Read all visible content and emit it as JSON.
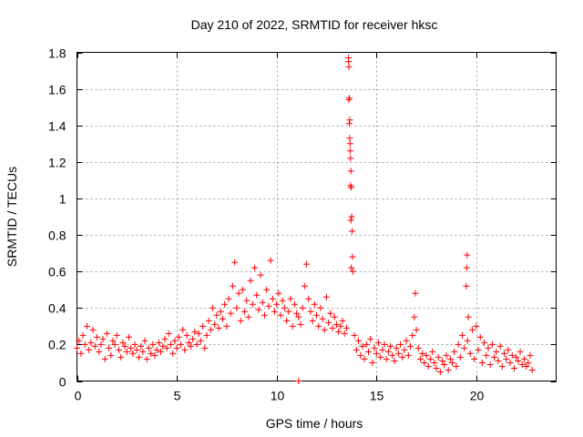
{
  "chart_data": {
    "type": "scatter",
    "title": "Day 210 of 2022, SRMTID for receiver hksc",
    "xlabel": "GPS time / hours",
    "ylabel": "SRMTID / TECUs",
    "xlim": [
      0,
      24
    ],
    "ylim": [
      0,
      1.8
    ],
    "xticks": [
      0,
      5,
      10,
      15,
      20
    ],
    "yticks": [
      0,
      0.2,
      0.4,
      0.6,
      0.8,
      1,
      1.2,
      1.4,
      1.6,
      1.8
    ],
    "xtick_labels": [
      "0",
      "5",
      "10",
      "15",
      "20"
    ],
    "ytick_labels": [
      "0",
      "0.2",
      "0.4",
      "0.6",
      "0.8",
      "1",
      "1.2",
      "1.4",
      "1.6",
      "1.8"
    ],
    "grid": true,
    "marker": "plus",
    "color": "#ff0000",
    "series": [
      {
        "name": "SRMTID",
        "x": [
          0.0,
          0.1,
          0.2,
          0.3,
          0.4,
          0.5,
          0.6,
          0.7,
          0.8,
          0.9,
          1.0,
          1.1,
          1.2,
          1.3,
          1.4,
          1.5,
          1.6,
          1.7,
          1.8,
          1.9,
          2.0,
          2.1,
          2.2,
          2.3,
          2.4,
          2.5,
          2.6,
          2.7,
          2.8,
          2.9,
          3.0,
          3.1,
          3.2,
          3.3,
          3.4,
          3.5,
          3.6,
          3.7,
          3.8,
          3.9,
          4.0,
          4.1,
          4.2,
          4.3,
          4.4,
          4.5,
          4.6,
          4.7,
          4.8,
          4.9,
          5.0,
          5.1,
          5.2,
          5.3,
          5.4,
          5.5,
          5.6,
          5.7,
          5.8,
          5.9,
          6.0,
          6.1,
          6.2,
          6.3,
          6.4,
          6.5,
          6.6,
          6.7,
          6.8,
          6.9,
          7.0,
          7.1,
          7.2,
          7.3,
          7.4,
          7.5,
          7.6,
          7.7,
          7.8,
          7.9,
          8.0,
          8.1,
          8.2,
          8.3,
          8.4,
          8.5,
          8.6,
          8.7,
          8.8,
          8.9,
          9.0,
          9.1,
          9.2,
          9.3,
          9.4,
          9.5,
          9.6,
          9.7,
          9.8,
          9.9,
          10.0,
          10.1,
          10.2,
          10.3,
          10.4,
          10.5,
          10.6,
          10.7,
          10.8,
          10.9,
          11.0,
          11.1,
          11.2,
          11.3,
          11.4,
          11.5,
          11.6,
          11.7,
          11.8,
          11.9,
          12.0,
          12.1,
          12.2,
          12.3,
          12.4,
          12.5,
          12.6,
          12.7,
          12.8,
          12.9,
          13.0,
          13.1,
          13.2,
          13.3,
          13.4,
          13.5,
          13.6,
          13.62,
          13.64,
          13.66,
          13.68,
          13.7,
          13.72,
          13.74,
          13.76,
          13.78,
          13.8,
          13.82,
          13.6,
          13.62,
          13.64,
          13.66,
          13.68,
          13.7,
          13.72,
          13.74,
          13.9,
          14.0,
          14.1,
          14.2,
          14.3,
          14.4,
          14.5,
          14.6,
          14.7,
          14.8,
          14.9,
          15.0,
          15.1,
          15.2,
          15.3,
          15.4,
          15.5,
          15.6,
          15.7,
          15.8,
          15.9,
          16.0,
          16.1,
          16.2,
          16.3,
          16.4,
          16.5,
          16.6,
          16.7,
          16.8,
          16.9,
          16.95,
          17.0,
          17.1,
          17.2,
          17.3,
          17.4,
          17.5,
          17.6,
          17.7,
          17.8,
          17.9,
          18.0,
          18.1,
          18.2,
          18.3,
          18.4,
          18.5,
          18.6,
          18.7,
          18.8,
          18.9,
          19.0,
          19.1,
          19.2,
          19.3,
          19.4,
          19.5,
          19.52,
          19.54,
          19.56,
          19.6,
          19.7,
          19.8,
          19.9,
          20.0,
          20.1,
          20.2,
          20.3,
          20.4,
          20.5,
          20.6,
          20.7,
          20.8,
          20.9,
          21.0,
          21.1,
          21.2,
          21.3,
          21.4,
          21.5,
          21.6,
          21.7,
          21.8,
          21.9,
          22.0,
          22.1,
          22.2,
          22.3,
          22.4,
          22.5,
          22.6,
          22.7,
          22.8,
          11.1
        ],
        "y": [
          0.18,
          0.22,
          0.15,
          0.25,
          0.2,
          0.3,
          0.17,
          0.21,
          0.28,
          0.19,
          0.24,
          0.16,
          0.2,
          0.23,
          0.12,
          0.26,
          0.18,
          0.14,
          0.22,
          0.2,
          0.25,
          0.17,
          0.13,
          0.21,
          0.19,
          0.16,
          0.24,
          0.18,
          0.15,
          0.2,
          0.17,
          0.13,
          0.19,
          0.16,
          0.22,
          0.12,
          0.18,
          0.15,
          0.2,
          0.14,
          0.17,
          0.21,
          0.16,
          0.19,
          0.23,
          0.18,
          0.26,
          0.2,
          0.15,
          0.22,
          0.18,
          0.24,
          0.2,
          0.28,
          0.17,
          0.25,
          0.21,
          0.19,
          0.23,
          0.27,
          0.2,
          0.26,
          0.22,
          0.3,
          0.18,
          0.25,
          0.33,
          0.28,
          0.4,
          0.31,
          0.36,
          0.29,
          0.38,
          0.34,
          0.42,
          0.3,
          0.45,
          0.37,
          0.52,
          0.65,
          0.4,
          0.48,
          0.33,
          0.5,
          0.38,
          0.44,
          0.35,
          0.55,
          0.42,
          0.62,
          0.47,
          0.39,
          0.58,
          0.43,
          0.36,
          0.5,
          0.41,
          0.66,
          0.45,
          0.38,
          0.42,
          0.48,
          0.36,
          0.44,
          0.4,
          0.33,
          0.38,
          0.45,
          0.3,
          0.42,
          0.37,
          0.35,
          0.31,
          0.4,
          0.52,
          0.64,
          0.45,
          0.38,
          0.33,
          0.42,
          0.36,
          0.3,
          0.4,
          0.34,
          0.28,
          0.46,
          0.32,
          0.37,
          0.29,
          0.35,
          0.31,
          0.27,
          0.3,
          0.33,
          0.26,
          0.29,
          1.75,
          1.72,
          1.55,
          1.43,
          1.3,
          1.22,
          1.15,
          1.06,
          0.9,
          0.82,
          0.68,
          0.6,
          1.77,
          1.54,
          1.41,
          1.33,
          1.26,
          1.07,
          0.88,
          0.62,
          0.25,
          0.17,
          0.22,
          0.14,
          0.19,
          0.12,
          0.2,
          0.16,
          0.23,
          0.1,
          0.18,
          0.15,
          0.21,
          0.13,
          0.17,
          0.2,
          0.12,
          0.16,
          0.19,
          0.14,
          0.11,
          0.18,
          0.15,
          0.2,
          0.13,
          0.17,
          0.22,
          0.14,
          0.19,
          0.25,
          0.35,
          0.48,
          0.28,
          0.18,
          0.12,
          0.15,
          0.1,
          0.14,
          0.08,
          0.12,
          0.16,
          0.1,
          0.07,
          0.13,
          0.05,
          0.11,
          0.09,
          0.14,
          0.06,
          0.12,
          0.1,
          0.16,
          0.08,
          0.2,
          0.13,
          0.25,
          0.18,
          0.52,
          0.62,
          0.69,
          0.22,
          0.35,
          0.15,
          0.28,
          0.12,
          0.3,
          0.17,
          0.24,
          0.1,
          0.21,
          0.14,
          0.18,
          0.09,
          0.2,
          0.13,
          0.16,
          0.11,
          0.19,
          0.08,
          0.15,
          0.12,
          0.17,
          0.1,
          0.14,
          0.07,
          0.13,
          0.11,
          0.16,
          0.09,
          0.12,
          0.08,
          0.1,
          0.14,
          0.06,
          0.0
        ]
      }
    ]
  }
}
